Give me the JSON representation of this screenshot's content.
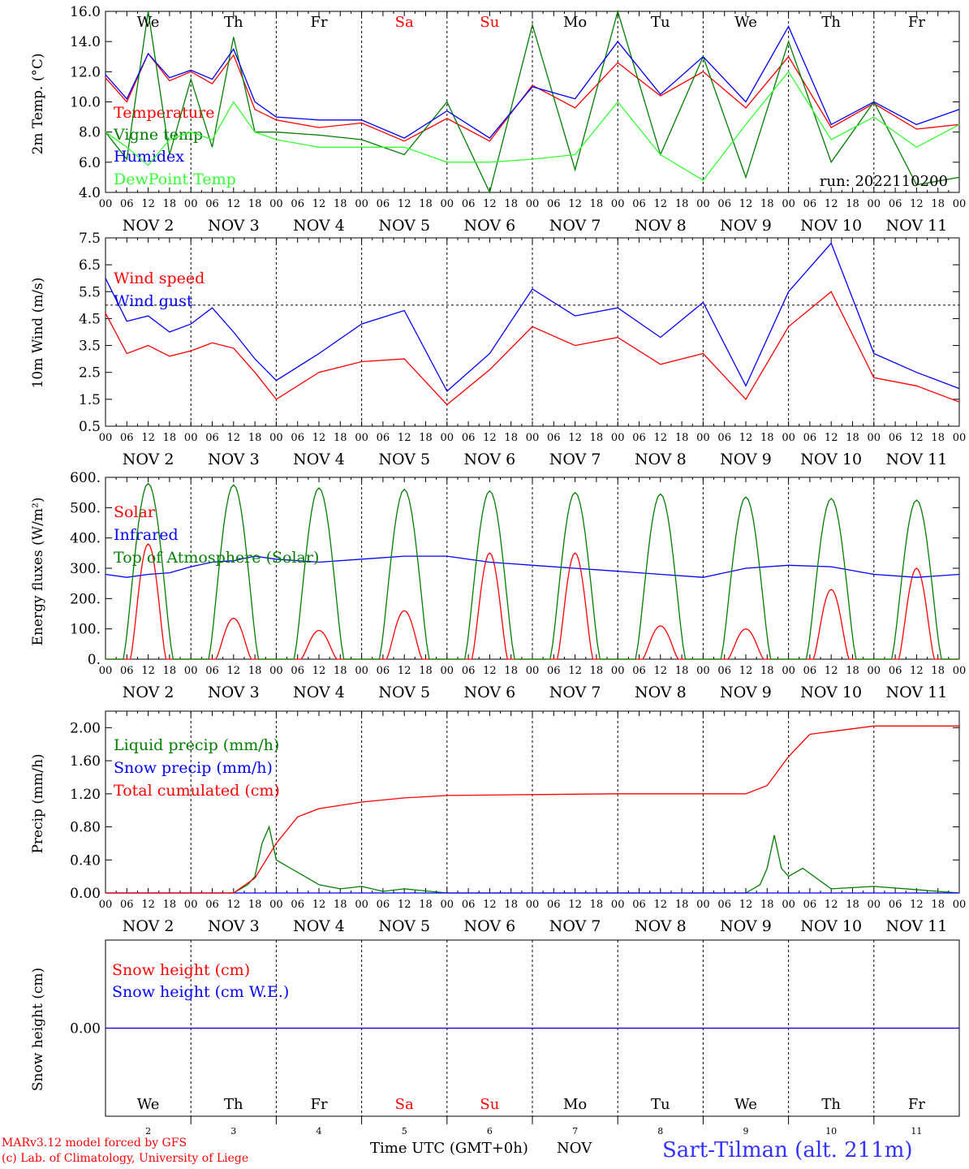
{
  "run_label": "run: 2022110200",
  "weekdays": [
    {
      "label": "We",
      "color": "#000000"
    },
    {
      "label": "Th",
      "color": "#000000"
    },
    {
      "label": "Fr",
      "color": "#000000"
    },
    {
      "label": "Sa",
      "color": "#ff0000"
    },
    {
      "label": "Su",
      "color": "#ff0000"
    },
    {
      "label": "Mo",
      "color": "#000000"
    },
    {
      "label": "Tu",
      "color": "#000000"
    },
    {
      "label": "We",
      "color": "#000000"
    },
    {
      "label": "Th",
      "color": "#000000"
    },
    {
      "label": "Fr",
      "color": "#000000"
    }
  ],
  "day_labels": [
    "NOV  2",
    "NOV  3",
    "NOV  4",
    "NOV  5",
    "NOV  6",
    "NOV  7",
    "NOV  8",
    "NOV  9",
    "NOV 10",
    "NOV 11"
  ],
  "hour_ticks": [
    "00",
    "06",
    "12",
    "18"
  ],
  "final_hour": "00",
  "bottom_day_numbers": [
    "2",
    "3",
    "4",
    "5",
    "6",
    "7",
    "8",
    "9",
    "10",
    "11"
  ],
  "footer": {
    "model": "MARv3.12 model forced by GFS",
    "copyright": "(c) Lab. of Climatology, University of Liege",
    "xlabel": "Time UTC (GMT+0h)",
    "month": "NOV",
    "station": "Sart-Tilman (alt. 211m)"
  },
  "chart_data": [
    {
      "type": "line",
      "ylabel": "2m Temp. (°C)",
      "ylim": [
        4.0,
        16.0
      ],
      "yticks": [
        "4.0",
        "6.0",
        "8.0",
        "10.0",
        "12.0",
        "14.0",
        "16.0"
      ],
      "x_unit": "hours since 2022-11-02 00 UTC",
      "series": [
        {
          "name": "Temperature",
          "color": "#ff0000",
          "x": [
            0,
            6,
            12,
            18,
            24,
            30,
            36,
            42,
            48,
            60,
            72,
            84,
            96,
            108,
            120,
            132,
            144,
            156,
            168,
            180,
            192,
            204,
            216,
            228,
            240
          ],
          "values": [
            11.6,
            10.0,
            13.2,
            11.4,
            12.0,
            11.2,
            13.1,
            9.5,
            8.8,
            8.3,
            8.6,
            7.4,
            8.9,
            7.4,
            11.1,
            9.6,
            12.6,
            10.4,
            12.0,
            9.6,
            13.0,
            8.3,
            9.9,
            8.2,
            8.5
          ]
        },
        {
          "name": "Vigne temp",
          "color": "#007f00",
          "x": [
            0,
            6,
            12,
            18,
            24,
            30,
            36,
            42,
            48,
            60,
            72,
            84,
            96,
            108,
            120,
            132,
            144,
            156,
            168,
            180,
            192,
            204,
            216,
            228,
            240
          ],
          "values": [
            8.0,
            6.2,
            16.0,
            6.5,
            11.5,
            7.0,
            14.3,
            8.0,
            8.0,
            7.8,
            7.5,
            6.5,
            10.0,
            4.0,
            15.1,
            5.5,
            16.0,
            6.5,
            13.0,
            5.0,
            14.0,
            6.0,
            10.0,
            4.5,
            5.0
          ]
        },
        {
          "name": "Humidex",
          "color": "#0000ff",
          "x": [
            0,
            6,
            12,
            18,
            24,
            30,
            36,
            42,
            48,
            60,
            72,
            84,
            96,
            108,
            120,
            132,
            144,
            156,
            168,
            180,
            192,
            204,
            216,
            228,
            240
          ],
          "values": [
            11.8,
            10.2,
            13.2,
            11.6,
            12.1,
            11.5,
            13.5,
            10.0,
            9.0,
            8.8,
            8.8,
            7.6,
            9.4,
            7.6,
            11.0,
            10.2,
            14.0,
            10.5,
            13.0,
            10.0,
            15.0,
            8.5,
            10.0,
            8.5,
            9.5
          ]
        },
        {
          "name": "DewPoint Temp",
          "color": "#33ff33",
          "x": [
            0,
            6,
            12,
            18,
            24,
            30,
            36,
            42,
            48,
            60,
            72,
            84,
            96,
            108,
            120,
            132,
            144,
            156,
            168,
            180,
            192,
            204,
            216,
            228,
            240
          ],
          "values": [
            8.0,
            7.0,
            5.8,
            7.5,
            8.0,
            7.5,
            10.0,
            8.0,
            7.5,
            7.0,
            7.0,
            7.0,
            6.0,
            6.0,
            6.2,
            6.5,
            10.0,
            6.5,
            4.8,
            8.5,
            12.0,
            7.5,
            9.0,
            7.0,
            8.5
          ]
        }
      ]
    },
    {
      "type": "line",
      "ylabel": "10m Wind (m/s)",
      "ylim": [
        0.5,
        7.5
      ],
      "yticks": [
        "0.5",
        "1.5",
        "2.5",
        "3.5",
        "4.5",
        "5.5",
        "6.5",
        "7.5"
      ],
      "reference_line": 5.0,
      "x_unit": "hours since 2022-11-02 00 UTC",
      "series": [
        {
          "name": "Wind speed",
          "color": "#ff0000",
          "x": [
            0,
            6,
            12,
            18,
            24,
            30,
            36,
            42,
            48,
            60,
            72,
            84,
            96,
            108,
            120,
            132,
            144,
            156,
            168,
            180,
            192,
            204,
            216,
            228,
            240
          ],
          "values": [
            4.7,
            3.2,
            3.5,
            3.1,
            3.3,
            3.6,
            3.4,
            2.5,
            1.5,
            2.5,
            2.9,
            3.0,
            1.3,
            2.6,
            4.2,
            3.5,
            3.8,
            2.8,
            3.2,
            1.5,
            4.2,
            5.5,
            2.3,
            2.0,
            1.4
          ]
        },
        {
          "name": "Wind gust",
          "color": "#0000ff",
          "x": [
            0,
            6,
            12,
            18,
            24,
            30,
            36,
            42,
            48,
            60,
            72,
            84,
            96,
            108,
            120,
            132,
            144,
            156,
            168,
            180,
            192,
            204,
            216,
            228,
            240
          ],
          "values": [
            6.0,
            4.4,
            4.6,
            4.0,
            4.3,
            4.9,
            4.0,
            3.0,
            2.2,
            3.2,
            4.3,
            4.8,
            1.8,
            3.2,
            5.6,
            4.6,
            4.9,
            3.8,
            5.1,
            2.0,
            5.5,
            7.3,
            3.2,
            2.5,
            1.9
          ]
        }
      ]
    },
    {
      "type": "line",
      "ylabel": "Energy fluxes (W/m²)",
      "ylim": [
        0,
        600
      ],
      "yticks": [
        "0.",
        "100.",
        "200.",
        "300.",
        "400.",
        "500.",
        "600."
      ],
      "x_unit": "hours since 2022-11-02 00 UTC",
      "daily_peaks": {
        "solar": [
          380,
          135,
          95,
          160,
          350,
          350,
          110,
          100,
          230,
          300
        ],
        "top_of_atmosphere": [
          580,
          575,
          565,
          560,
          555,
          550,
          545,
          535,
          530,
          525
        ]
      },
      "series": [
        {
          "name": "Solar",
          "color": "#ff0000"
        },
        {
          "name": "Infrared",
          "color": "#0000ff",
          "x": [
            0,
            6,
            12,
            18,
            24,
            30,
            36,
            42,
            48,
            60,
            72,
            84,
            96,
            108,
            120,
            132,
            144,
            156,
            168,
            180,
            192,
            204,
            216,
            228,
            240
          ],
          "values": [
            280,
            270,
            280,
            285,
            305,
            320,
            325,
            340,
            330,
            320,
            330,
            340,
            340,
            320,
            310,
            300,
            290,
            280,
            270,
            300,
            310,
            305,
            280,
            270,
            280
          ]
        },
        {
          "name": "Top of Atmosphere (Solar)",
          "color": "#007f00"
        }
      ]
    },
    {
      "type": "line",
      "ylabel": "Precip (mm/h)",
      "ylim": [
        0,
        2.2
      ],
      "yticks": [
        "0.00",
        "0.40",
        "0.80",
        "1.20",
        "1.60",
        "2.00"
      ],
      "x_unit": "hours since 2022-11-02 00 UTC",
      "series": [
        {
          "name": "Liquid precip (mm/h)",
          "color": "#007f00",
          "x": [
            0,
            36,
            40,
            42,
            44,
            46,
            48,
            52,
            56,
            60,
            66,
            72,
            78,
            84,
            96,
            180,
            184,
            186,
            188,
            190,
            192,
            196,
            204,
            216,
            240
          ],
          "values": [
            0,
            0,
            0.1,
            0.2,
            0.6,
            0.8,
            0.4,
            0.3,
            0.2,
            0.1,
            0.05,
            0.08,
            0.02,
            0.05,
            0,
            0,
            0.1,
            0.3,
            0.7,
            0.3,
            0.2,
            0.3,
            0.05,
            0.08,
            0
          ]
        },
        {
          "name": "Snow precip (mm/h)",
          "color": "#0000ff",
          "x": [
            0,
            240
          ],
          "values": [
            0,
            0
          ]
        },
        {
          "name": "Total cumulated (cm)",
          "color": "#ff0000",
          "x": [
            0,
            36,
            42,
            48,
            54,
            60,
            72,
            84,
            96,
            120,
            144,
            180,
            186,
            192,
            198,
            216,
            240
          ],
          "values": [
            0,
            0,
            0.18,
            0.6,
            0.92,
            1.02,
            1.1,
            1.15,
            1.18,
            1.19,
            1.2,
            1.2,
            1.3,
            1.65,
            1.92,
            2.02,
            2.02
          ]
        }
      ]
    },
    {
      "type": "line",
      "ylabel": "Snow height (cm)",
      "ylim": [
        -1,
        1
      ],
      "yticks": [
        "0.00"
      ],
      "x_unit": "hours since 2022-11-02 00 UTC",
      "series": [
        {
          "name": "Snow height (cm)",
          "color": "#ff0000",
          "x": [
            0,
            240
          ],
          "values": [
            0,
            0
          ]
        },
        {
          "name": "Snow height (cm W.E.)",
          "color": "#0000ff",
          "x": [
            0,
            240
          ],
          "values": [
            0,
            0
          ]
        }
      ]
    }
  ]
}
